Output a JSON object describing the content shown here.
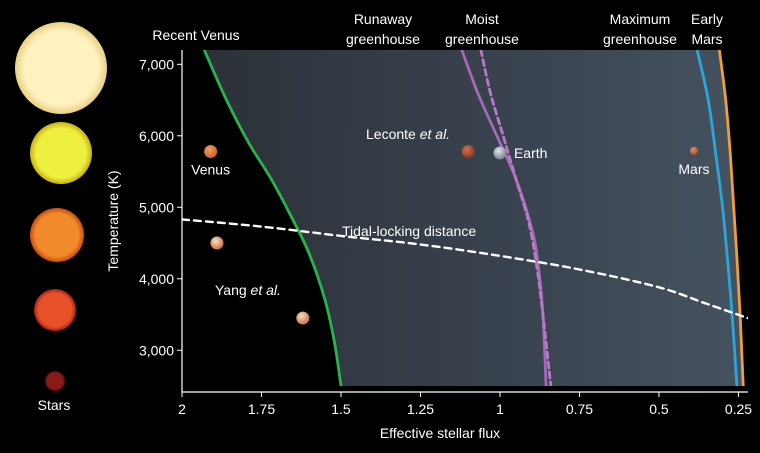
{
  "chart_data": {
    "type": "line",
    "xlabel": "Effective stellar flux",
    "ylabel": "Temperature (K)",
    "xlim": [
      2.0,
      0.22
    ],
    "ylim": [
      2500,
      7200
    ],
    "x_axis_reversed": true,
    "x_ticks": [
      {
        "value": 2.0,
        "label": "2"
      },
      {
        "value": 1.75,
        "label": "1.75"
      },
      {
        "value": 1.5,
        "label": "1.5"
      },
      {
        "value": 1.25,
        "label": "1.25"
      },
      {
        "value": 1.0,
        "label": "1"
      },
      {
        "value": 0.75,
        "label": "0.75"
      },
      {
        "value": 0.5,
        "label": "0.5"
      },
      {
        "value": 0.25,
        "label": "0.25"
      }
    ],
    "y_ticks": [
      {
        "value": 3000,
        "label": "3,000"
      },
      {
        "value": 4000,
        "label": "4,000"
      },
      {
        "value": 5000,
        "label": "5,000"
      },
      {
        "value": 6000,
        "label": "6,000"
      },
      {
        "value": 7000,
        "label": "7,000"
      }
    ],
    "grid": false,
    "legend": "none",
    "habitable_zone_shading": {
      "upper_edge_curve": "recent_venus",
      "lower_edge_curve": "early_mars",
      "colors": [
        "#2c3138",
        "#3a4450",
        "#45525f"
      ]
    },
    "series": [
      {
        "key": "recent_venus",
        "color": "#2bb24c",
        "dash": "solid",
        "points": [
          [
            1.93,
            7200
          ],
          [
            1.86,
            6500
          ],
          [
            1.79,
            5900
          ],
          [
            1.72,
            5400
          ],
          [
            1.66,
            4900
          ],
          [
            1.6,
            4350
          ],
          [
            1.55,
            3700
          ],
          [
            1.52,
            3100
          ],
          [
            1.5,
            2500
          ]
        ]
      },
      {
        "key": "runaway_greenhouse",
        "color": "#a46ab8",
        "dash": "solid",
        "points": [
          [
            1.12,
            7200
          ],
          [
            1.07,
            6600
          ],
          [
            1.01,
            6000
          ],
          [
            0.95,
            5400
          ],
          [
            0.9,
            4700
          ],
          [
            0.88,
            4200
          ],
          [
            0.865,
            3500
          ],
          [
            0.855,
            2500
          ]
        ]
      },
      {
        "key": "moist_greenhouse",
        "color": "#b87ac8",
        "dash": "dashed",
        "points": [
          [
            1.06,
            7200
          ],
          [
            1.03,
            6600
          ],
          [
            0.99,
            6000
          ],
          [
            0.95,
            5400
          ],
          [
            0.91,
            4800
          ],
          [
            0.885,
            4200
          ],
          [
            0.865,
            3500
          ],
          [
            0.84,
            2500
          ]
        ]
      },
      {
        "key": "maximum_greenhouse",
        "color": "#2aa6d8",
        "dash": "solid",
        "points": [
          [
            0.38,
            7200
          ],
          [
            0.345,
            6500
          ],
          [
            0.32,
            5700
          ],
          [
            0.3,
            5000
          ],
          [
            0.285,
            4300
          ],
          [
            0.27,
            3500
          ],
          [
            0.255,
            2500
          ]
        ]
      },
      {
        "key": "early_mars",
        "color": "#f0a030",
        "dash": "solid",
        "points": [
          [
            0.31,
            7200
          ],
          [
            0.29,
            6500
          ],
          [
            0.275,
            5700
          ],
          [
            0.265,
            5000
          ],
          [
            0.255,
            4300
          ],
          [
            0.245,
            3500
          ],
          [
            0.235,
            2500
          ]
        ]
      },
      {
        "key": "tidal_locking_distance",
        "color": "#ffffff",
        "dash": "dashed",
        "points": [
          [
            2.0,
            4830
          ],
          [
            1.75,
            4730
          ],
          [
            1.5,
            4600
          ],
          [
            1.25,
            4480
          ],
          [
            1.0,
            4320
          ],
          [
            0.75,
            4130
          ],
          [
            0.5,
            3880
          ],
          [
            0.35,
            3650
          ],
          [
            0.22,
            3450
          ]
        ]
      }
    ],
    "planets": [
      {
        "name": "venus",
        "label": "Venus",
        "x": 1.91,
        "y": 5780,
        "color": "#c8642a",
        "highlight": "#f0a060"
      },
      {
        "name": "leconte",
        "label": "",
        "x": 1.1,
        "y": 5780,
        "color": "#8a3a2a",
        "highlight": "#d07050"
      },
      {
        "name": "earth",
        "label": "Earth",
        "x": 1.0,
        "y": 5760,
        "color": "#7c8290",
        "highlight": "#e0e4ec"
      },
      {
        "name": "mars",
        "label": "Mars",
        "x": 0.39,
        "y": 5790,
        "color": "#b05a34",
        "highlight": "#e08a5a"
      },
      {
        "name": "yang-planet-1",
        "label": "",
        "x": 1.89,
        "y": 4500,
        "color": "#d07040",
        "highlight": "#f4e0c8"
      },
      {
        "name": "yang-planet-2",
        "label": "",
        "x": 1.62,
        "y": 3450,
        "color": "#d07040",
        "highlight": "#f4e0c8"
      }
    ],
    "annotations": {
      "recent_venus": "Recent Venus",
      "runaway_line1": "Runaway",
      "runaway_line2": "greenhouse",
      "moist_line1": "Moist",
      "moist_line2": "greenhouse",
      "maximum_line1": "Maximum",
      "maximum_line2": "greenhouse",
      "early_mars_line1": "Early",
      "early_mars_line2": "Mars",
      "leconte_main": "Leconte ",
      "leconte_italic": "et al.",
      "yang_main": "Yang ",
      "yang_italic": "et al.",
      "tidal_locking": "Tidal-locking distance"
    },
    "stars": {
      "label": "Stars",
      "items": [
        {
          "name": "star-white-large",
          "color": "#fff2c0",
          "edge": "#e8d080"
        },
        {
          "name": "star-yellow",
          "color": "#eef040",
          "edge": "#c8b010"
        },
        {
          "name": "star-orange",
          "color": "#f08a2a",
          "edge": "#c84a10"
        },
        {
          "name": "star-red-orange",
          "color": "#e8502a",
          "edge": "#a82010"
        },
        {
          "name": "star-dark-red",
          "color": "#8a1a1a",
          "edge": "#500808"
        }
      ]
    }
  }
}
